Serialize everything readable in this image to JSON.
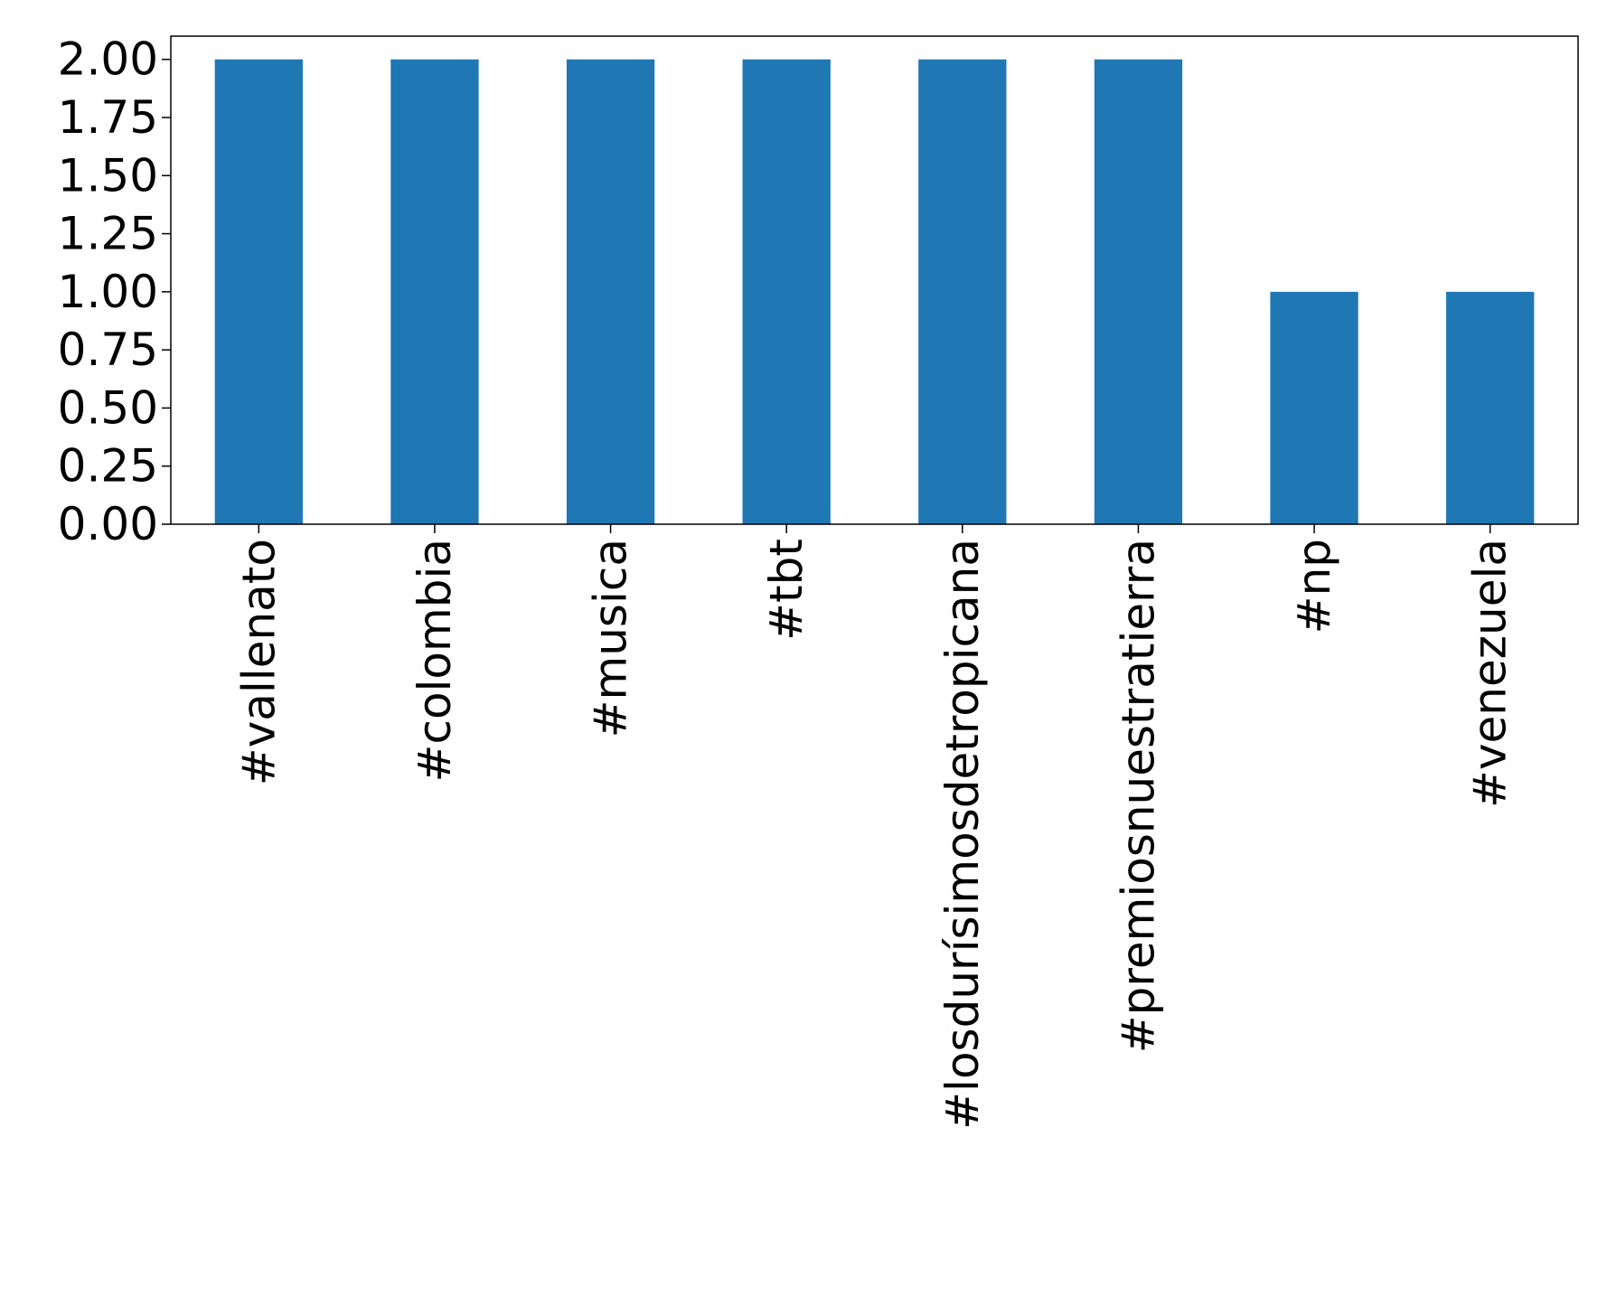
{
  "chart_data": {
    "type": "bar",
    "categories": [
      "#vallenato",
      "#colombia",
      "#musica",
      "#tbt",
      "#losdurísimosdetropicana",
      "#premiosnuestratierra",
      "#np",
      "#venezuela"
    ],
    "values": [
      2,
      2,
      2,
      2,
      2,
      2,
      1,
      1
    ],
    "ylim": [
      0,
      2.1
    ],
    "yticks": [
      "0.00",
      "0.25",
      "0.50",
      "0.75",
      "1.00",
      "1.25",
      "1.50",
      "1.75",
      "2.00"
    ],
    "title": "",
    "xlabel": "",
    "ylabel": "",
    "grid": false,
    "legend": "none",
    "bar_color": "#1f77b4"
  }
}
